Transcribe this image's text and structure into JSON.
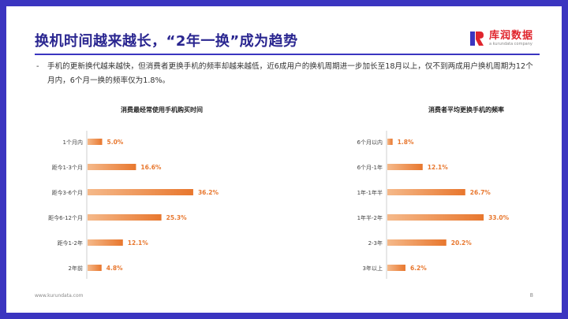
{
  "header": {
    "title": "换机时间越来越长，“2年一换”成为趋势",
    "logo_name": "库润数据",
    "logo_sub": "a kurundata company"
  },
  "body": {
    "bullet_dash": "-",
    "bullet_text": "手机的更新换代越来越快，但消费者更换手机的频率却越来越低，近6成用户的换机周期进一步加长至18月以上，仅不到两成用户换机周期为12个月内，6个月一换的频率仅为1.8%。"
  },
  "chart_data": [
    {
      "type": "bar",
      "orientation": "horizontal",
      "title": "消费最经常使用手机购买时间",
      "categories": [
        "1个月内",
        "距今1-3个月",
        "距今3-6个月",
        "距今6-12个月",
        "距今1-2年",
        "2年前"
      ],
      "values": [
        5.0,
        16.6,
        36.2,
        25.3,
        12.1,
        4.8
      ],
      "labels": [
        "5.0%",
        "16.6%",
        "36.2%",
        "25.3%",
        "12.1%",
        "4.8%"
      ],
      "unit": "%",
      "color": "#f0a060"
    },
    {
      "type": "bar",
      "orientation": "horizontal",
      "title": "消费者平均更换手机的频率",
      "categories": [
        "6个月以内",
        "6个月-1年",
        "1年-1年半",
        "1年半-2年",
        "2-3年",
        "3年以上"
      ],
      "values": [
        1.8,
        12.1,
        26.7,
        33.0,
        20.2,
        6.2
      ],
      "labels": [
        "1.8%",
        "12.1%",
        "26.7%",
        "33.0%",
        "20.2%",
        "6.2%"
      ],
      "unit": "%",
      "color": "#f0a060"
    }
  ],
  "footer": {
    "url": "www.kurundata.com",
    "page": "8"
  },
  "colors": {
    "frame": "#3b35c0",
    "title": "#2a2690",
    "bar_start": "#f5b98a",
    "bar_end": "#e8772e",
    "value_label": "#e8772e"
  }
}
